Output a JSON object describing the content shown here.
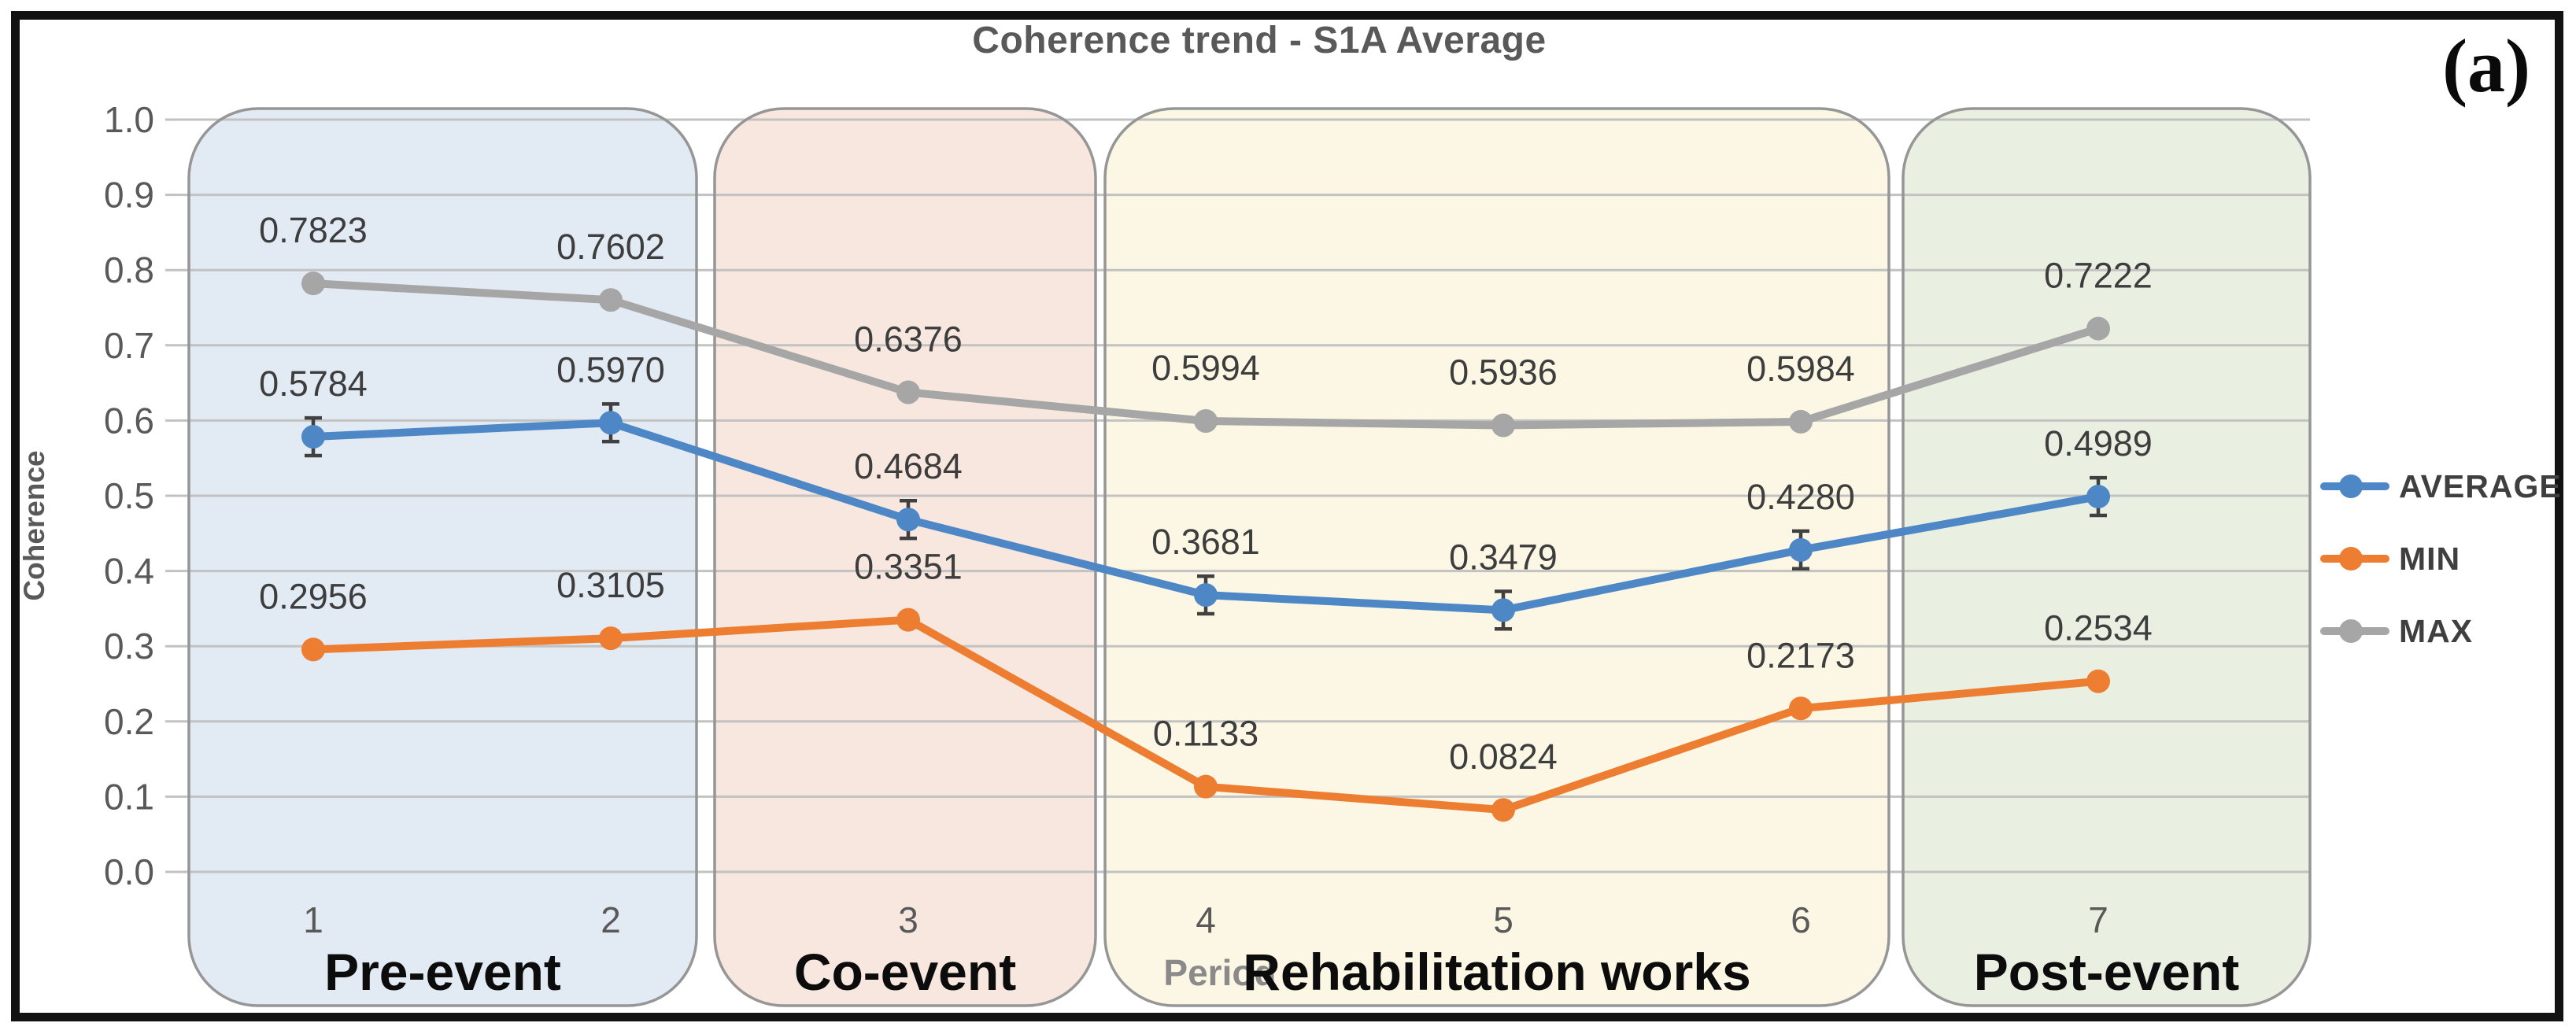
{
  "annotations": {
    "panel_label": "(a)"
  },
  "chart_data": {
    "type": "line",
    "title": "Coherence trend - S1A Average",
    "xlabel": "Period",
    "ylabel": "Coherence",
    "ylim": [
      0.0,
      1.0
    ],
    "ytick_step": 0.1,
    "grid": true,
    "legend_position": "right",
    "categories": [
      1,
      2,
      3,
      4,
      5,
      6,
      7
    ],
    "series": [
      {
        "name": "AVERAGE",
        "color": "#4e87c6",
        "values": [
          0.5784,
          0.597,
          0.4684,
          0.3681,
          0.3479,
          0.428,
          0.4989
        ],
        "labels": [
          "0.5784",
          "0.5970",
          "0.4684",
          "0.3681",
          "0.3479",
          "0.4280",
          "0.4989"
        ],
        "error_bars": true,
        "error_approx": 0.025
      },
      {
        "name": "MIN",
        "color": "#ed7d31",
        "values": [
          0.2956,
          0.3105,
          0.3351,
          0.1133,
          0.0824,
          0.2173,
          0.2534
        ],
        "labels": [
          "0.2956",
          "0.3105",
          "0.3351",
          "0.1133",
          "0.0824",
          "0.2173",
          "0.2534"
        ],
        "error_bars": false
      },
      {
        "name": "MAX",
        "color": "#a6a6a6",
        "values": [
          0.7823,
          0.7602,
          0.6376,
          0.5994,
          0.5936,
          0.5984,
          0.7222
        ],
        "labels": [
          "0.7823",
          "0.7602",
          "0.6376",
          "0.5994",
          "0.5936",
          "0.5984",
          "0.7222"
        ],
        "error_bars": false
      }
    ],
    "phases": [
      {
        "label": "Pre-event",
        "from_period": 1,
        "to_period": 2,
        "fill": "#e2eaf4",
        "border": "#969696"
      },
      {
        "label": "Co-event",
        "from_period": 3,
        "to_period": 3,
        "fill": "#f7e7de",
        "border": "#969696"
      },
      {
        "label": "Rehabilitation works",
        "from_period": 4,
        "to_period": 6,
        "fill": "#fbf7e4",
        "border": "#969696"
      },
      {
        "label": "Post-event",
        "from_period": 7,
        "to_period": 7,
        "fill": "#e9f0e2",
        "border": "#969696"
      }
    ]
  },
  "style": {
    "title_color": "#595959",
    "tick_color": "#595959",
    "data_label_color": "#3d3d3d",
    "phase_label_color": "#0c0c0c",
    "xlabel_color": "#8a8a8a",
    "gridline_color": "#c2c2c2",
    "error_bar_color": "#404040",
    "frame_color": "#121212"
  }
}
